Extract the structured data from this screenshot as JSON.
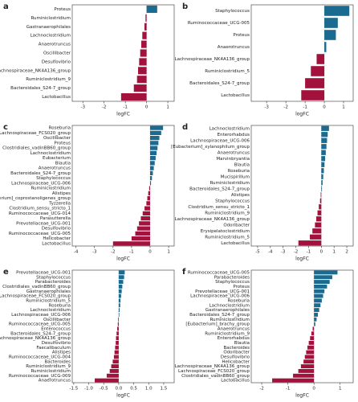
{
  "chart_data": [
    {
      "type": "bar",
      "panel_label": "a",
      "x_label": "logFC",
      "color_positive": "#1a6b8f",
      "color_negative": "#a3123d",
      "categories": [
        "Proteus",
        "Ruminiclostridium",
        "Gastranaerophilales",
        "Lachnoclostridium",
        "Anaerotruncus",
        "Oscillibacter",
        "Desulfovibrio",
        "Lachnospiraceae_NK4A136_group",
        "Ruminiclostridium_9",
        "Bacteroidales_S24-7_group",
        "Lactobacillus"
      ],
      "values": [
        0.5,
        -0.05,
        -0.1,
        -0.2,
        -0.25,
        -0.3,
        -0.35,
        -0.4,
        -0.45,
        -0.6,
        -1.2
      ],
      "xlim": [
        -3.5,
        1.3
      ],
      "xticks": [
        -3,
        -2,
        -1,
        0,
        1
      ]
    },
    {
      "type": "bar",
      "panel_label": "b",
      "x_label": "logFC",
      "color_positive": "#1a6b8f",
      "color_negative": "#a3123d",
      "categories": [
        "Staphylococcus",
        "Ruminococcaceae_UCG-005",
        "Proteus",
        "Anaerotruncus",
        "Lachnospiraceae_NK4A136_group",
        "Ruminiclostridium_5",
        "Bacteroidales_S24-7_group",
        "Lactobacillus"
      ],
      "values": [
        1.3,
        0.7,
        0.6,
        0.1,
        -0.4,
        -0.7,
        -1.0,
        -1.2
      ],
      "xlim": [
        -3.8,
        1.5
      ],
      "xticks": [
        -3,
        -2,
        -1,
        0,
        1
      ]
    },
    {
      "type": "bar",
      "panel_label": "c",
      "x_label": "logFC",
      "color_positive": "#1a6b8f",
      "color_negative": "#a3123d",
      "categories": [
        "Roseburia",
        "Lachnospiraceae_FCS020_group",
        "Oscillibacter",
        "Proteus",
        "Clostridiales_vadinBB60_group",
        "Lachnoclostridium",
        "Eubacterium",
        "Blautia",
        "Anaerotruncus",
        "Bacteroidales_S24-7_group",
        "Staphylococcus",
        "Lachnospiraceae_UCG-006",
        "Ruminiclostridium",
        "Alistipes",
        "[Eubacterium]_coprostanoligenes_group",
        "Tyzzerella",
        "Clostridium_sensu_stricto_1",
        "Ruminococcaceae_UCG-014",
        "Parasutterella",
        "Prevotellaceae_UCG-001",
        "Desulfovibrio",
        "Ruminococcaceae_UCG-005",
        "Helicobacter",
        "Lactobacillus"
      ],
      "values": [
        0.7,
        0.6,
        0.5,
        0.45,
        0.4,
        0.35,
        0.3,
        0.25,
        0.2,
        0.15,
        0.1,
        0.05,
        -0.05,
        -0.1,
        -0.15,
        -0.2,
        -0.3,
        -0.4,
        -0.5,
        -0.6,
        -0.7,
        -0.8,
        -1.0,
        -2.0
      ],
      "xlim": [
        -4.2,
        1.3
      ],
      "xticks": [
        -4,
        -3,
        -2,
        -1,
        0,
        1
      ]
    },
    {
      "type": "bar",
      "panel_label": "d",
      "x_label": "logFC",
      "color_positive": "#1a6b8f",
      "color_negative": "#a3123d",
      "categories": [
        "Lachnoclostridium",
        "Enterorhabdus",
        "Lachnospiraceae_UCG-006",
        "[Eubacterium]_xylanophilum_group",
        "Anaerotruncus",
        "Marvinbryantia",
        "Blautia",
        "Roseburia",
        "Mucispirillum",
        "Ruminiclostridium",
        "Bacteroidales_S24-7_group",
        "Alistipes",
        "Staphylococcus",
        "Clostridium_sensu_stricto_1",
        "Ruminiclostridium_9",
        "Lachnospiraceae_NK4A136_group",
        "Odoribacter",
        "Erysipelatoclostridium",
        "Ruminiclostridium_5",
        "Lactobacillus"
      ],
      "values": [
        0.6,
        0.5,
        0.45,
        0.4,
        0.35,
        0.3,
        0.25,
        0.2,
        0.15,
        0.1,
        0.05,
        -0.05,
        -0.1,
        -0.2,
        -0.3,
        -0.4,
        -0.5,
        -0.7,
        -0.9,
        -1.8
      ],
      "xlim": [
        -5.5,
        2.5
      ],
      "xticks": [
        -5,
        -4,
        -3,
        -2,
        -1,
        0,
        1,
        2
      ]
    },
    {
      "type": "bar",
      "panel_label": "e",
      "x_label": "logFC",
      "color_positive": "#1a6b8f",
      "color_negative": "#a3123d",
      "categories": [
        "Prevotellaceae_UCG-001",
        "Staphylococcus",
        "Parabacteroides",
        "Clostridiales_vadinBB60_group",
        "Gastranaerophilales",
        "Lachnospiraceae_FCS020_group",
        "Ruminiclostridium_5",
        "Roseburia",
        "Lachnoclostridium",
        "Lachnospiraceae_UCG-006",
        "Oscillibacter",
        "Ruminococcaceae_UCG-005",
        "Enterococcus",
        "Bacteroidales_S24-7_group",
        "Lachnospiraceae_NK4A136_group",
        "Desulfovibrio",
        "Faecalibaculum",
        "Alistipes",
        "Ruminococcaceae_UCG-004",
        "Bacteroides",
        "Ruminiclostridium_9",
        "Ruminiclostridium",
        "Ruminococcaceae_UCG-009",
        "Anaerotruncus"
      ],
      "values": [
        0.2,
        0.18,
        0.15,
        0.12,
        0.1,
        0.08,
        0.06,
        0.05,
        0.03,
        0.02,
        -0.02,
        -0.03,
        -0.05,
        -0.07,
        -0.09,
        -0.1,
        -0.12,
        -0.14,
        -0.16,
        -0.2,
        -0.25,
        -0.3,
        -0.4,
        -0.8
      ],
      "xlim": [
        -1.55,
        1.85
      ],
      "xticks": [
        -1.5,
        {
          "value": -1,
          "label": "-1.0"
        },
        -0.5,
        {
          "value": 0,
          "label": "0.0"
        },
        0.5,
        {
          "value": 1,
          "label": "1.0"
        },
        1.5
      ]
    },
    {
      "type": "bar",
      "panel_label": "f",
      "x_label": "logFC",
      "color_positive": "#1a6b8f",
      "color_negative": "#a3123d",
      "categories": [
        "Ruminococcaceae_UCG-005",
        "Parabacteroides",
        "Staphylococcus",
        "Proteus",
        "Prevotellaceae_UCG-001",
        "Lachnospiraceae_UCG-006",
        "Roseburia",
        "Lachnoclostridium",
        "Gastranaerophilales",
        "Bacteroidales_S24-7_group",
        "Ruminiclostridium",
        "[Eubacterium]_brachy_group",
        "Anaerotruncus",
        "Ruminiclostridium_9",
        "Enterorhabdus",
        "Blautia",
        "Bacteroides",
        "Odoribacter",
        "Desulfovibrio",
        "Helicobacter",
        "Lachnospiraceae_NK4A136_group",
        "Lachnospiraceae_FCS020_group",
        "Clostridiales_vadinBB60_group",
        "Lactobacillus"
      ],
      "values": [
        0.9,
        0.7,
        0.6,
        0.5,
        0.4,
        0.35,
        0.3,
        0.25,
        0.2,
        0.15,
        0.1,
        0.05,
        -0.05,
        -0.1,
        -0.15,
        -0.2,
        -0.25,
        -0.3,
        -0.35,
        -0.4,
        -0.5,
        -0.6,
        -0.8,
        -1.6
      ],
      "xlim": [
        -2.4,
        1.5
      ],
      "xticks": [
        -2,
        -1,
        0,
        1
      ]
    }
  ]
}
